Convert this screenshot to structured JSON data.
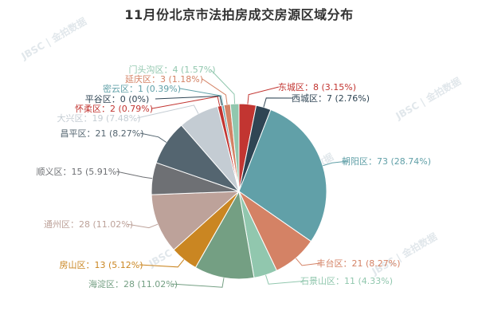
{
  "chart_data": {
    "type": "pie",
    "title": "11月份北京市法拍房成交房源区域分布",
    "unit": "",
    "watermark": "JBSC | 金拍数据",
    "slices": [
      {
        "name": "东城区",
        "value": 8,
        "percent": "3.15%",
        "color": "#c23531"
      },
      {
        "name": "西城区",
        "value": 7,
        "percent": "2.76%",
        "color": "#2f4554"
      },
      {
        "name": "朝阳区",
        "value": 73,
        "percent": "28.74%",
        "color": "#61a0a8"
      },
      {
        "name": "丰台区",
        "value": 21,
        "percent": "8.27%",
        "color": "#d48265"
      },
      {
        "name": "石景山区",
        "value": 11,
        "percent": "4.33%",
        "color": "#91c7ae"
      },
      {
        "name": "海淀区",
        "value": 28,
        "percent": "11.02%",
        "color": "#749f83"
      },
      {
        "name": "房山区",
        "value": 13,
        "percent": "5.12%",
        "color": "#ca8622"
      },
      {
        "name": "通州区",
        "value": 28,
        "percent": "11.02%",
        "color": "#bda29a"
      },
      {
        "name": "顺义区",
        "value": 15,
        "percent": "5.91%",
        "color": "#6e7074"
      },
      {
        "name": "昌平区",
        "value": 21,
        "percent": "8.27%",
        "color": "#546570"
      },
      {
        "name": "大兴区",
        "value": 19,
        "percent": "7.48%",
        "color": "#c4ccd3"
      },
      {
        "name": "怀柔区",
        "value": 2,
        "percent": "0.79%",
        "color": "#c23531"
      },
      {
        "name": "平谷区",
        "value": 0,
        "percent": "0%",
        "color": "#2f4554"
      },
      {
        "name": "密云区",
        "value": 1,
        "percent": "0.39%",
        "color": "#61a0a8"
      },
      {
        "name": "延庆区",
        "value": 3,
        "percent": "1.18%",
        "color": "#d48265"
      },
      {
        "name": "门头沟区",
        "value": 4,
        "percent": "1.57%",
        "color": "#91c7ae"
      }
    ]
  }
}
